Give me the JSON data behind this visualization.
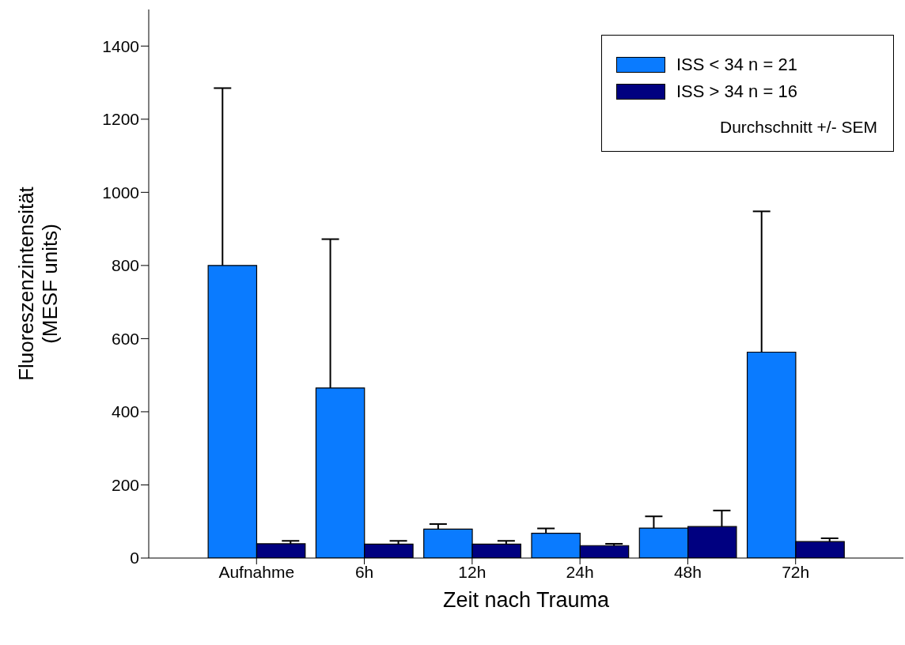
{
  "chart_data": {
    "type": "bar",
    "xlabel": "Zeit nach Trauma",
    "ylabel": "Fluoreszenzintensität (MESF units)",
    "categories": [
      "Aufnahme",
      "6h",
      "12h",
      "24h",
      "48h",
      "72h"
    ],
    "series": [
      {
        "name": "ISS < 34 n = 21",
        "color": "#0a7bff",
        "values": [
          800,
          465,
          79,
          68,
          82,
          563
        ],
        "errors": [
          [
            800,
            1285
          ],
          [
            465,
            872
          ],
          [
            79,
            93
          ],
          [
            68,
            81
          ],
          [
            82,
            114
          ],
          [
            563,
            948
          ]
        ]
      },
      {
        "name": "ISS > 34 n = 16",
        "color": "#000080",
        "values": [
          39,
          38,
          38,
          34,
          86,
          45
        ],
        "errors": [
          [
            39,
            47
          ],
          [
            38,
            47
          ],
          [
            38,
            47
          ],
          [
            34,
            39
          ],
          [
            86,
            130
          ],
          [
            45,
            54
          ]
        ]
      }
    ],
    "ylim": [
      0,
      1500
    ],
    "yticks": [
      0,
      200,
      400,
      600,
      800,
      1000,
      1200,
      1400
    ],
    "legend": "top right",
    "annotations": [
      "Durchschnitt +/- SEM"
    ]
  }
}
